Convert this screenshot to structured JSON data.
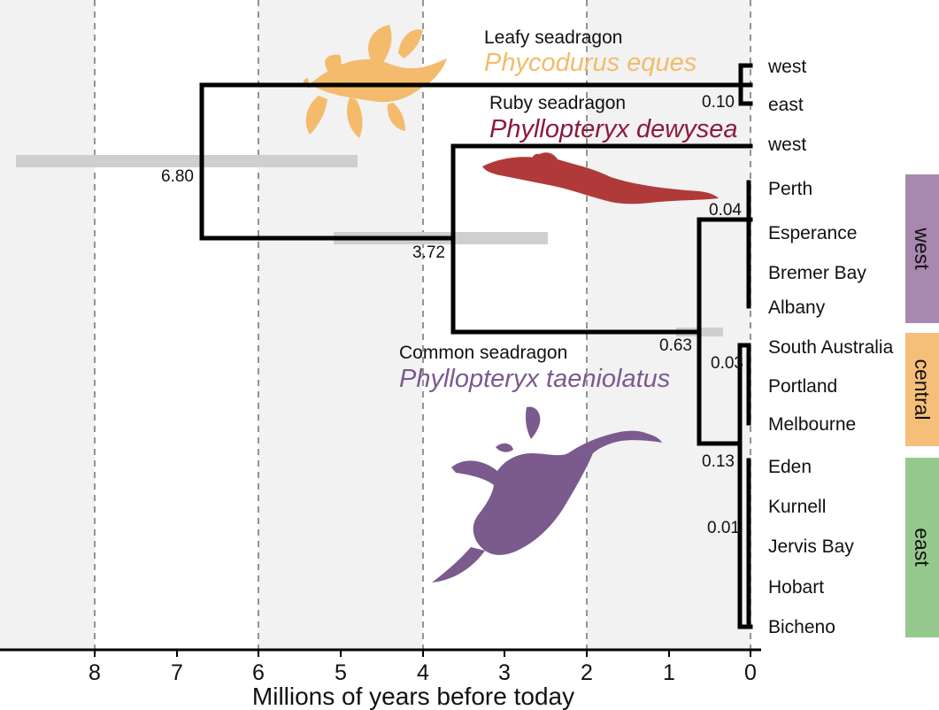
{
  "x_axis": {
    "label": "Millions of years before today",
    "ticks": [
      "8",
      "7",
      "6",
      "5",
      "4",
      "3",
      "2",
      "1",
      "0"
    ]
  },
  "tips": [
    {
      "label": "west"
    },
    {
      "label": "east"
    },
    {
      "label": "west"
    },
    {
      "label": "Perth"
    },
    {
      "label": "Esperance"
    },
    {
      "label": "Bremer Bay"
    },
    {
      "label": "Albany"
    },
    {
      "label": "South Australia"
    },
    {
      "label": "Portland"
    },
    {
      "label": "Melbourne"
    },
    {
      "label": "Eden"
    },
    {
      "label": "Kurnell"
    },
    {
      "label": "Jervis Bay"
    },
    {
      "label": "Hobart"
    },
    {
      "label": "Bicheno"
    }
  ],
  "nodes": [
    {
      "label": "6.80",
      "age": 6.8
    },
    {
      "label": "3.72",
      "age": 3.72
    },
    {
      "label": "0.10",
      "age": 0.1
    },
    {
      "label": "0.63",
      "age": 0.63
    },
    {
      "label": "0.04",
      "age": 0.04
    },
    {
      "label": "0.13",
      "age": 0.13
    },
    {
      "label": "0.03",
      "age": 0.03
    },
    {
      "label": "0.01",
      "age": 0.01
    }
  ],
  "species": [
    {
      "common": "Leafy seadragon",
      "scientific": "Phycodurus eques",
      "color": "#f4bb6c"
    },
    {
      "common": "Ruby seadragon",
      "scientific": "Phyllopteryx dewysea",
      "color": "#8c1a3a"
    },
    {
      "common": "Common seadragon",
      "scientific": "Phyllopteryx taeniolatus",
      "color": "#7b5a8e"
    }
  ],
  "region_bands": [
    {
      "label": "west",
      "color": "#a888ae"
    },
    {
      "label": "central",
      "color": "#f5bf7a"
    },
    {
      "label": "east",
      "color": "#96c98d"
    }
  ],
  "colors": {
    "background_stripe": "#f2f2f2",
    "branch": "#000000",
    "hpd_bar": "#cfcfcf"
  }
}
